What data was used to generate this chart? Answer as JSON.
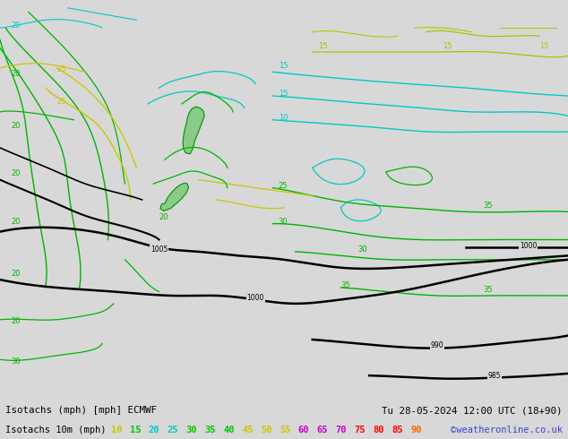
{
  "title_line1": "Isotachs (mph) [mph] ECMWF",
  "title_line2": "Tu 28-05-2024 12:00 UTC (18+90)",
  "subtitle": "Isotachs 10m (mph)",
  "watermark": "©weatheronline.co.uk",
  "legend_values": [
    10,
    15,
    20,
    25,
    30,
    35,
    40,
    45,
    50,
    55,
    60,
    65,
    70,
    75,
    80,
    85,
    90
  ],
  "legend_colors": [
    "#c8c800",
    "#00c800",
    "#00c8c8",
    "#00c8c8",
    "#00c800",
    "#00c800",
    "#00c800",
    "#c8c800",
    "#c8c800",
    "#c8c800",
    "#c800c8",
    "#c800c8",
    "#c800c8",
    "#ff0000",
    "#ff0000",
    "#ff0000",
    "#ff6400"
  ],
  "bg_color": "#d8d8d8",
  "map_bg_color": "#d8d8d8",
  "bottom_bar_color": "#b8b8b8",
  "fig_width": 6.34,
  "fig_height": 4.9,
  "dpi": 100
}
